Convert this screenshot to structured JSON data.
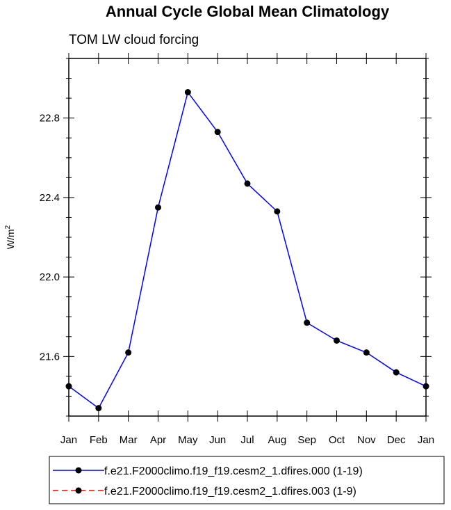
{
  "chart_data": {
    "type": "line",
    "title": "Annual Cycle Global Mean Climatology",
    "subtitle": "TOM LW cloud forcing",
    "xlabel": "",
    "ylabel": "W/m",
    "ylabel_superscript": "2",
    "categories": [
      "Jan",
      "Feb",
      "Mar",
      "Apr",
      "May",
      "Jun",
      "Jul",
      "Aug",
      "Sep",
      "Oct",
      "Nov",
      "Dec",
      "Jan"
    ],
    "ylim": [
      21.3,
      23.1
    ],
    "yticks": [
      21.6,
      22.0,
      22.4,
      22.8
    ],
    "ytick_labels": [
      "21.6",
      "22.0",
      "22.4",
      "22.8"
    ],
    "series": [
      {
        "name": "f.e21.F2000climo.f19_f19.cesm2_1.dfires.000 (1-19)",
        "color": "#0000ff",
        "line_style": "solid",
        "marker": "filled-circle",
        "values": [
          21.45,
          21.34,
          21.62,
          22.35,
          22.93,
          22.73,
          22.47,
          22.33,
          21.77,
          21.68,
          21.62,
          21.52,
          21.45
        ]
      }
    ],
    "legend": [
      {
        "label": "f.e21.F2000climo.f19_f19.cesm2_1.dfires.000 (1-19)",
        "color": "#0000ff",
        "line_style": "solid"
      },
      {
        "label": "f.e21.F2000climo.f19_f19.cesm2_1.dfires.003 (1-9)",
        "color": "#ff0000",
        "line_style": "dashed"
      }
    ],
    "legend_position": "bottom"
  }
}
